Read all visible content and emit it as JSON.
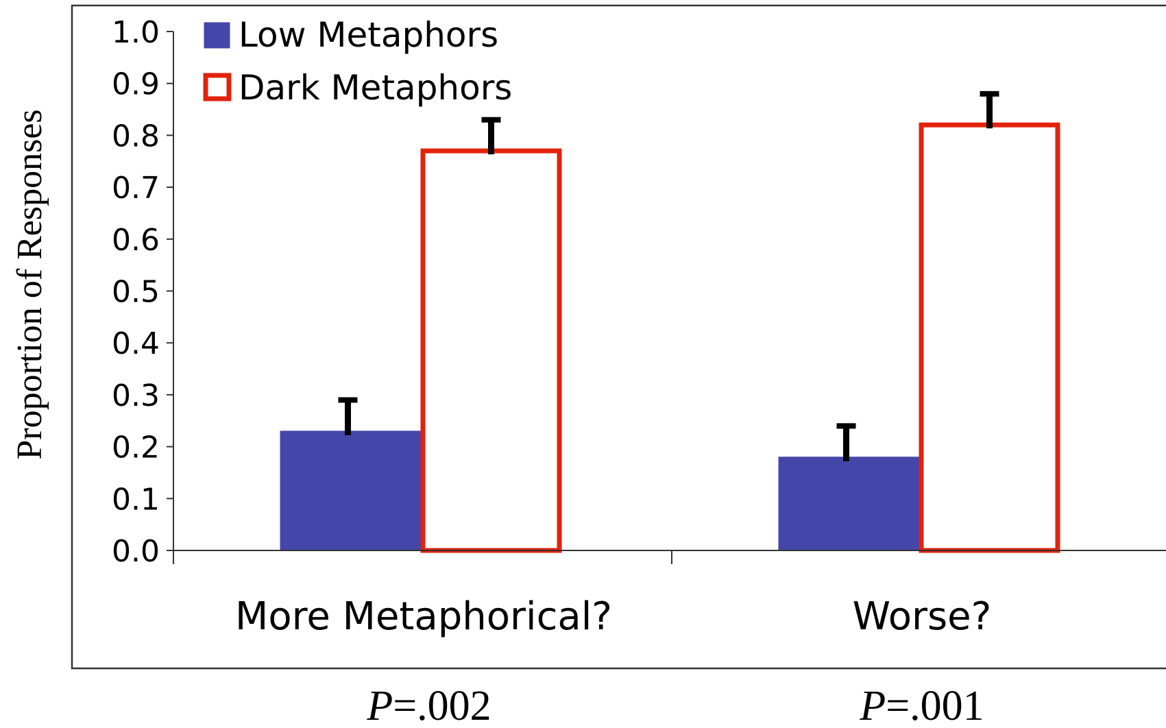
{
  "chart_data": {
    "type": "bar",
    "ylabel": "Proportion of Responses",
    "xlabel": "",
    "title": "",
    "ylim": [
      0,
      1.0
    ],
    "yticks": [
      "0.0",
      "0.1",
      "0.2",
      "0.3",
      "0.4",
      "0.5",
      "0.6",
      "0.7",
      "0.8",
      "0.9",
      "1.0"
    ],
    "categories": [
      "More Metaphorical?",
      "Worse?"
    ],
    "series": [
      {
        "name": "Low Metaphors",
        "values": [
          0.23,
          0.18
        ],
        "error": [
          0.06,
          0.06
        ],
        "fill": "#4546a9",
        "stroke": "#4546a9"
      },
      {
        "name": "Dark Metaphors",
        "values": [
          0.77,
          0.82
        ],
        "error": [
          0.06,
          0.06
        ],
        "fill": "#ffffff",
        "stroke": "#e2230b"
      }
    ],
    "p_values": [
      "P=.002",
      "P=.001"
    ],
    "p_letter": "P",
    "p_rest": [
      "=.002",
      "=.001"
    ],
    "legend_position": "top-left",
    "grid": false
  },
  "colors": {
    "frame": "#333333",
    "axis": "#333333",
    "error_bar": "#000000",
    "text": "#000000"
  }
}
